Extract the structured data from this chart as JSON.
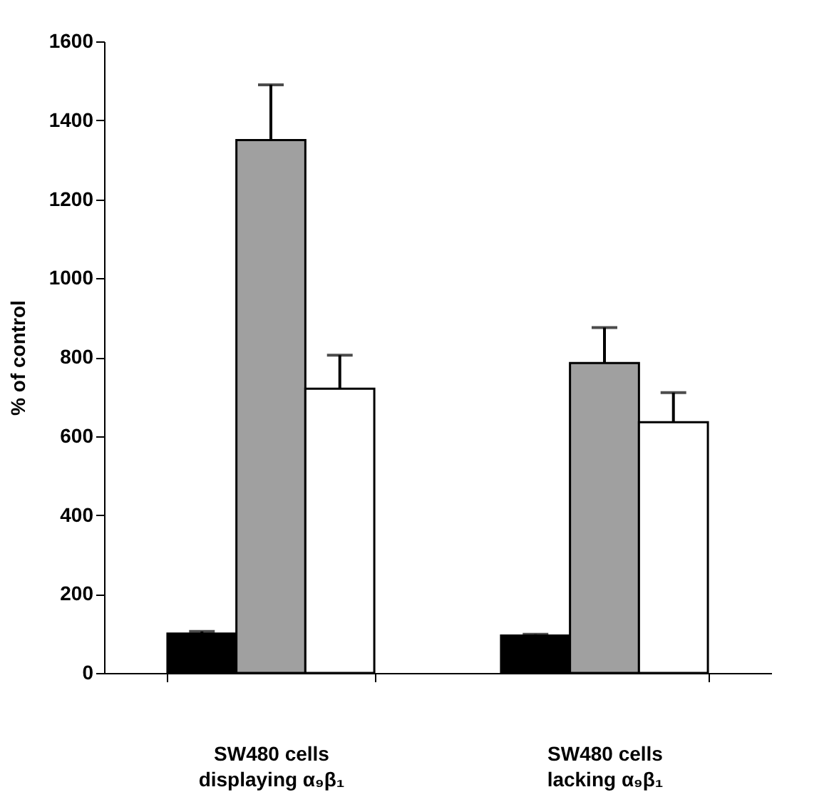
{
  "chart_data": {
    "type": "bar",
    "ylabel": "% of control",
    "categories": [
      "SW480 cells displaying α₉β₁",
      "SW480 cells lacking α₉β₁"
    ],
    "series": [
      {
        "color": "#000000",
        "values": [
          100,
          95
        ],
        "errors": [
          [
            100,
            105
          ],
          [
            95,
            98
          ]
        ]
      },
      {
        "color": "#a0a0a0",
        "values": [
          1350,
          785
        ],
        "errors": [
          [
            1350,
            1490
          ],
          [
            785,
            875
          ]
        ]
      },
      {
        "color": "#ffffff",
        "values": [
          720,
          635
        ],
        "errors": [
          [
            720,
            805
          ],
          [
            635,
            710
          ]
        ]
      }
    ],
    "ylim": [
      0,
      1600
    ],
    "yticks": [
      0,
      200,
      400,
      600,
      800,
      1000,
      1200,
      1400,
      1600
    ],
    "grid": false,
    "legend": false
  }
}
